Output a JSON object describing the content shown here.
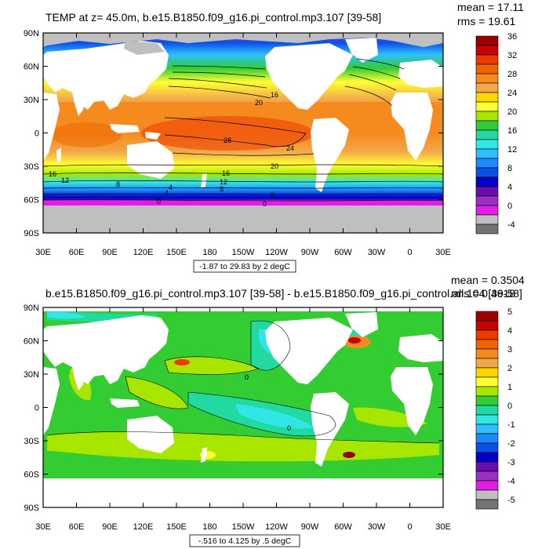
{
  "panels": [
    {
      "title": "TEMP at z=  45.0m, b.e15.B1850.f09_g16.pi_control.mp3.107 [39-58]",
      "mean": "mean = 17.11",
      "rms": "rms = 19.61",
      "range_label": "-1.87 to 29.83 by 2 degC",
      "colorbar_labels": [
        "36",
        "32",
        "28",
        "24",
        "20",
        "16",
        "12",
        "8",
        "4",
        "0",
        "-4"
      ],
      "colorbar_colors": [
        "#9b0000",
        "#c80000",
        "#ec3a00",
        "#f06400",
        "#f58a1e",
        "#f2a84a",
        "#ffd700",
        "#ffff33",
        "#a8e600",
        "#33cc33",
        "#22d9a0",
        "#33e6e6",
        "#2fbfff",
        "#1e88ff",
        "#0a4fe6",
        "#0000c8",
        "#6a0dad",
        "#9b30c0",
        "#e11ee6",
        "#bfbfbf",
        "#737373"
      ],
      "contour_labels": [
        "20",
        "16",
        "28",
        "24",
        "20",
        "16",
        "12",
        "8",
        "16",
        "12",
        "8",
        "4",
        "0",
        "0",
        "4",
        "0"
      ],
      "xaxis_ticks": [
        "30E",
        "60E",
        "90E",
        "120E",
        "150E",
        "180",
        "150W",
        "120W",
        "90W",
        "60W",
        "30W",
        "0",
        "30E"
      ],
      "yaxis_ticks": [
        "90N",
        "60N",
        "30N",
        "0",
        "30S",
        "60S",
        "90S"
      ],
      "field": "temperature"
    },
    {
      "title": "b.e15.B1850.f09_g16.pi_control.mp3.107 [39-58] - b.e15.B1850.f09_g16.pi_control.all.104 [39-58]",
      "mean": "mean = 0.3504",
      "rms": "rms = 0.4618",
      "range_label": "-.516 to 4.125 by .5 degC",
      "colorbar_labels": [
        "5",
        "4",
        "3",
        "2",
        "1",
        "0",
        "-1",
        "-2",
        "-3",
        "-4",
        "-5"
      ],
      "colorbar_colors": [
        "#9b0000",
        "#c80000",
        "#ec3a00",
        "#f06400",
        "#f58a1e",
        "#f2a84a",
        "#ffd700",
        "#ffff33",
        "#a8e600",
        "#33cc33",
        "#22d9a0",
        "#33e6e6",
        "#2fbfff",
        "#1e88ff",
        "#0a4fe6",
        "#0000c8",
        "#6a0dad",
        "#9b30c0",
        "#e11ee6",
        "#bfbfbf",
        "#737373"
      ],
      "contour_labels": [
        "0",
        "0"
      ],
      "xaxis_ticks": [
        "30E",
        "60E",
        "90E",
        "120E",
        "150E",
        "180",
        "150W",
        "120W",
        "90W",
        "60W",
        "30W",
        "0",
        "30E"
      ],
      "yaxis_ticks": [
        "90N",
        "60N",
        "30N",
        "0",
        "30S",
        "60S",
        "90S"
      ],
      "field": "difference"
    }
  ]
}
